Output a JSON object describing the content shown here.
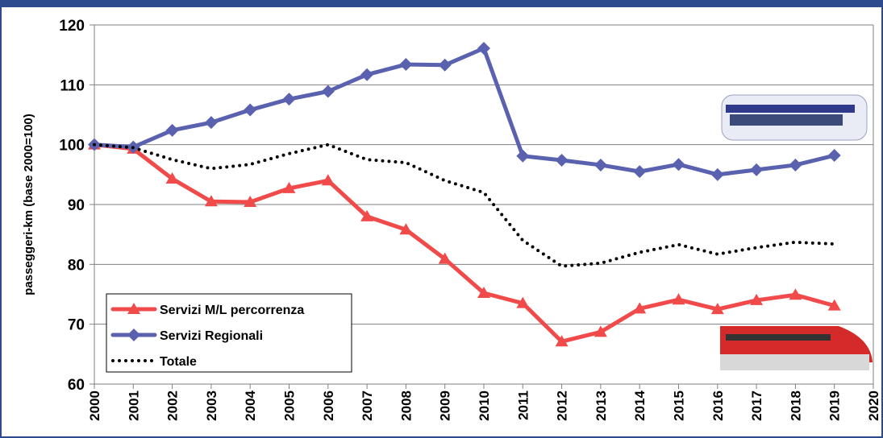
{
  "chart_data": {
    "type": "line",
    "y_label": "passeggeri-km (base 2000=100)",
    "x": [
      2000,
      2001,
      2002,
      2003,
      2004,
      2005,
      2006,
      2007,
      2008,
      2009,
      2010,
      2011,
      2012,
      2013,
      2014,
      2015,
      2016,
      2017,
      2018,
      2019
    ],
    "xlim": [
      2000,
      2020
    ],
    "xticks": [
      2000,
      2001,
      2002,
      2003,
      2004,
      2005,
      2006,
      2007,
      2008,
      2009,
      2010,
      2011,
      2012,
      2013,
      2014,
      2015,
      2016,
      2017,
      2018,
      2019,
      2020
    ],
    "ylim": [
      60,
      120
    ],
    "yticks": [
      60,
      70,
      80,
      90,
      100,
      110,
      120
    ],
    "grid": true,
    "legend": "lower left",
    "series": [
      {
        "name": "Servizi M/L percorrenza",
        "color": "#f04a4a",
        "marker": "triangle",
        "values": [
          100,
          99.3,
          94.3,
          90.5,
          90.4,
          92.7,
          94.0,
          88.0,
          85.8,
          80.9,
          75.2,
          73.5,
          67.1,
          68.7,
          72.6,
          74.1,
          72.5,
          74.0,
          74.9,
          73.1
        ]
      },
      {
        "name": "Servizi Regionali",
        "color": "#5a62b0",
        "marker": "diamond",
        "values": [
          100,
          99.6,
          102.4,
          103.7,
          105.8,
          107.6,
          108.9,
          111.7,
          113.4,
          113.3,
          116.1,
          98.1,
          97.4,
          96.6,
          95.5,
          96.7,
          95.0,
          95.8,
          96.6,
          98.2
        ]
      },
      {
        "name": "Totale",
        "color": "#000000",
        "marker": "none",
        "dotted": true,
        "values": [
          100,
          99.5,
          97.5,
          96.0,
          96.7,
          98.5,
          100.0,
          97.5,
          97.0,
          94.0,
          92.0,
          84.0,
          79.7,
          80.2,
          82.0,
          83.3,
          81.7,
          82.8,
          83.7,
          83.4
        ]
      }
    ]
  }
}
